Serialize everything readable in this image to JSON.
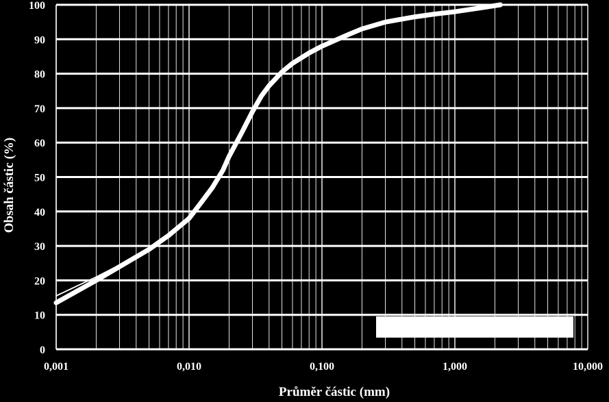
{
  "chart_data": {
    "type": "line",
    "title": "",
    "xlabel": "Průměr částic (mm)",
    "ylabel": "Obsah částic (%)",
    "x_scale": "log",
    "xlim": [
      0.001,
      10
    ],
    "ylim": [
      0,
      100
    ],
    "grid": true,
    "background_color": "#000000",
    "foreground_color": "#ffffff",
    "x_ticks": [
      {
        "value": 0.001,
        "label": "0,001"
      },
      {
        "value": 0.01,
        "label": "0,010"
      },
      {
        "value": 0.1,
        "label": "0,100"
      },
      {
        "value": 1,
        "label": "1,000"
      },
      {
        "value": 10,
        "label": "10,000"
      }
    ],
    "y_ticks": [
      {
        "value": 0,
        "label": "0"
      },
      {
        "value": 10,
        "label": "10"
      },
      {
        "value": 20,
        "label": "20"
      },
      {
        "value": 30,
        "label": "30"
      },
      {
        "value": 40,
        "label": "40"
      },
      {
        "value": 50,
        "label": "50"
      },
      {
        "value": 60,
        "label": "60"
      },
      {
        "value": 70,
        "label": "70"
      },
      {
        "value": 80,
        "label": "80"
      },
      {
        "value": 90,
        "label": "90"
      },
      {
        "value": 100,
        "label": "100"
      }
    ],
    "series": [
      {
        "style": "thick",
        "x": [
          0.001,
          0.002,
          0.003,
          0.005,
          0.007,
          0.01,
          0.012,
          0.015,
          0.018,
          0.02,
          0.025,
          0.03,
          0.035,
          0.04,
          0.05,
          0.06,
          0.08,
          0.1,
          0.15,
          0.2,
          0.3,
          0.5,
          0.7,
          1,
          1.5,
          2.2
        ],
        "y": [
          13.5,
          20,
          24,
          29,
          33,
          38,
          42,
          47,
          52,
          56,
          63,
          69,
          73.5,
          76.5,
          80.5,
          83,
          86,
          88,
          91,
          93,
          95,
          96.5,
          97.3,
          98,
          99,
          100
        ]
      },
      {
        "style": "thin",
        "x": [
          0.001,
          0.002,
          0.003,
          0.005
        ],
        "y": [
          15.5,
          21,
          24.5,
          29
        ]
      }
    ],
    "legend_box": {
      "color": "#ffffff",
      "label": ""
    }
  }
}
